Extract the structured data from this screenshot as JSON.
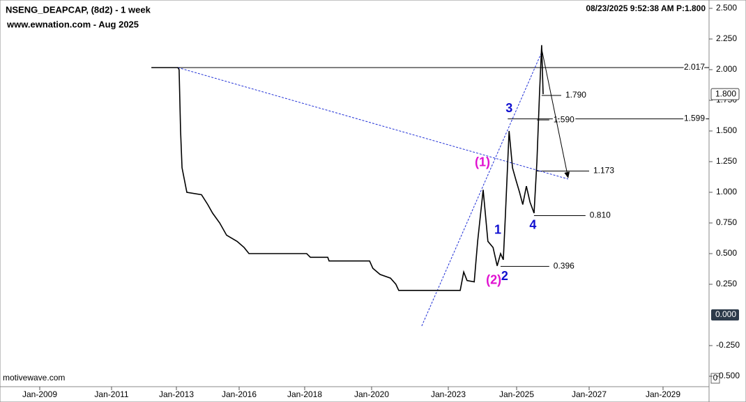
{
  "chart_data": {
    "type": "line",
    "title": "NSENG_DEAPCAP, (8d2) - 1 week",
    "subtitle": "www.ewnation.com  - Aug 2025",
    "timestamp": "08/23/2025 9:52:38 AM  P:1.800",
    "source": "motivewave.com",
    "corner_label": "0",
    "xlim": [
      2007.9,
      2030.25
    ],
    "xticks": [
      {
        "value": 2009,
        "label": "Jan-2009"
      },
      {
        "value": 2011,
        "label": "Jan-2011"
      },
      {
        "value": 2013,
        "label": "Jan-2013"
      },
      {
        "value": 2016,
        "label": "Jan-2016"
      },
      {
        "value": 2018,
        "label": "Jan-2018"
      },
      {
        "value": 2020,
        "label": "Jan-2020"
      },
      {
        "value": 2023,
        "label": "Jan-2023"
      },
      {
        "value": 2025,
        "label": "Jan-2025"
      },
      {
        "value": 2027,
        "label": "Jan-2027"
      },
      {
        "value": 2029,
        "label": "Jan-2029"
      }
    ],
    "ylim": [
      -0.585,
      2.568
    ],
    "yticks": [
      {
        "value": -0.5,
        "label": "-0.500"
      },
      {
        "value": -0.25,
        "label": "-0.250"
      },
      {
        "value": 0.25,
        "label": "0.250"
      },
      {
        "value": 0.5,
        "label": "0.500"
      },
      {
        "value": 0.75,
        "label": "0.750"
      },
      {
        "value": 1.0,
        "label": "1.000"
      },
      {
        "value": 1.25,
        "label": "1.250"
      },
      {
        "value": 1.5,
        "label": "1.500"
      },
      {
        "value": 1.75,
        "label": "1.750"
      },
      {
        "value": 2.0,
        "label": "2.000"
      },
      {
        "value": 2.25,
        "label": "2.250"
      },
      {
        "value": 2.5,
        "label": "2.500"
      }
    ],
    "zero_marker": {
      "value": 0,
      "label": "0.000"
    },
    "last_price": {
      "value": 1.8,
      "label": "1.800"
    },
    "series": [
      {
        "name": "NSENG_DEAPCAP",
        "color": "#000000",
        "x": [
          2012.23,
          2013.07,
          2013.13,
          2013.2,
          2013.27,
          2013.5,
          2014.2,
          2014.5,
          2014.73,
          2015.07,
          2015.4,
          2015.9,
          2016.15,
          2016.3,
          2018.06,
          2018.17,
          2018.69,
          2018.73,
          2019.94,
          2020.05,
          2020.33,
          2020.74,
          2020.95,
          2021.06,
          2023.35,
          2023.45,
          2023.55,
          2023.76,
          2023.86,
          2024.02,
          2024.16,
          2024.31,
          2024.43,
          2024.53,
          2024.61,
          2024.67,
          2024.78,
          2024.88,
          2024.98,
          2025.08,
          2025.17,
          2025.27,
          2025.37,
          2025.48,
          2025.56,
          2025.63,
          2025.69,
          2025.73
        ],
        "values": [
          2.017,
          2.017,
          2.0,
          1.5,
          1.2,
          1.0,
          0.98,
          0.9,
          0.83,
          0.75,
          0.65,
          0.6,
          0.55,
          0.5,
          0.5,
          0.47,
          0.47,
          0.44,
          0.44,
          0.38,
          0.33,
          0.3,
          0.25,
          0.2,
          0.2,
          0.35,
          0.28,
          0.27,
          0.6,
          1.02,
          0.6,
          0.55,
          0.4,
          0.5,
          0.45,
          0.8,
          1.5,
          1.2,
          1.1,
          1.0,
          0.9,
          1.05,
          0.92,
          0.83,
          1.25,
          1.8,
          2.2,
          1.8
        ]
      }
    ],
    "trendlines": [
      {
        "color": "#1f2fd6",
        "dashed": true,
        "x": [
          2013.07,
          2026.42
        ],
        "values": [
          2.017,
          1.108
        ]
      },
      {
        "color": "#1f2fd6",
        "dashed": true,
        "x": [
          2021.96,
          2025.69
        ],
        "values": [
          -0.09,
          2.142
        ]
      },
      {
        "color": "#000000",
        "dashed": false,
        "arrow": true,
        "x": [
          2025.69,
          2026.42
        ],
        "values": [
          2.17,
          1.12
        ]
      }
    ],
    "levels": [
      {
        "value": 2.017,
        "label": "2.017",
        "start": 2012.23,
        "end": 2030.25
      },
      {
        "value": 1.79,
        "label": "1.790",
        "start": 2025.69,
        "end": 2026.23
      },
      {
        "value": 1.599,
        "label": "1.599",
        "start": 2024.74,
        "end": 2030.25
      },
      {
        "value": 1.59,
        "label": "1.590",
        "start": 2025.56,
        "end": 2025.9
      },
      {
        "value": 1.173,
        "label": "1.173",
        "start": 2025.56,
        "end": 2027.0
      },
      {
        "value": 0.81,
        "label": "0.810",
        "start": 2025.48,
        "end": 2026.9
      },
      {
        "value": 0.396,
        "label": "0.396",
        "start": 2024.53,
        "end": 2025.9
      }
    ],
    "wave_labels": [
      {
        "text": "3",
        "color": "#1010d0",
        "x": 2024.78,
        "y": 1.68
      },
      {
        "text": "(1)",
        "color": "#e010d0",
        "x": 2024.0,
        "y": 1.24
      },
      {
        "text": "1",
        "color": "#1010d0",
        "x": 2024.45,
        "y": 0.69
      },
      {
        "text": "(2)",
        "color": "#e010d0",
        "x": 2024.33,
        "y": 0.28
      },
      {
        "text": "2",
        "color": "#1010d0",
        "x": 2024.65,
        "y": 0.31
      },
      {
        "text": "4",
        "color": "#1010d0",
        "x": 2025.45,
        "y": 0.73
      }
    ]
  }
}
